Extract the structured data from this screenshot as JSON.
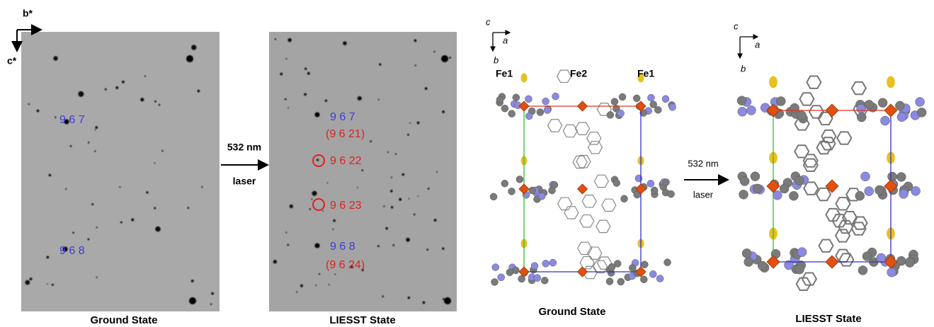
{
  "diffraction": {
    "axes": {
      "b": "b*",
      "c": "c*"
    },
    "ground": {
      "labels": [
        "9 6 7",
        "9 6 8"
      ],
      "caption": "Ground State"
    },
    "arrow": {
      "wavelength": "532 nm",
      "source": "laser"
    },
    "liesst": {
      "labels": [
        "9 6 7",
        "(9 6 21)",
        "9 6 22",
        "9 6 23",
        "9 6 8",
        "(9 6 24)"
      ],
      "caption": "LIESST State"
    }
  },
  "structure": {
    "ground": {
      "axes": {
        "c": "c",
        "a": "a",
        "b": "b"
      },
      "atoms": [
        "Fe1",
        "Fe2",
        "Fe1"
      ],
      "caption": "Ground State"
    },
    "arrow": {
      "wavelength": "532 nm",
      "source": "laser"
    },
    "liesst": {
      "axes": {
        "c": "c",
        "a": "a",
        "b": "b"
      },
      "caption": "LIESST State"
    }
  }
}
